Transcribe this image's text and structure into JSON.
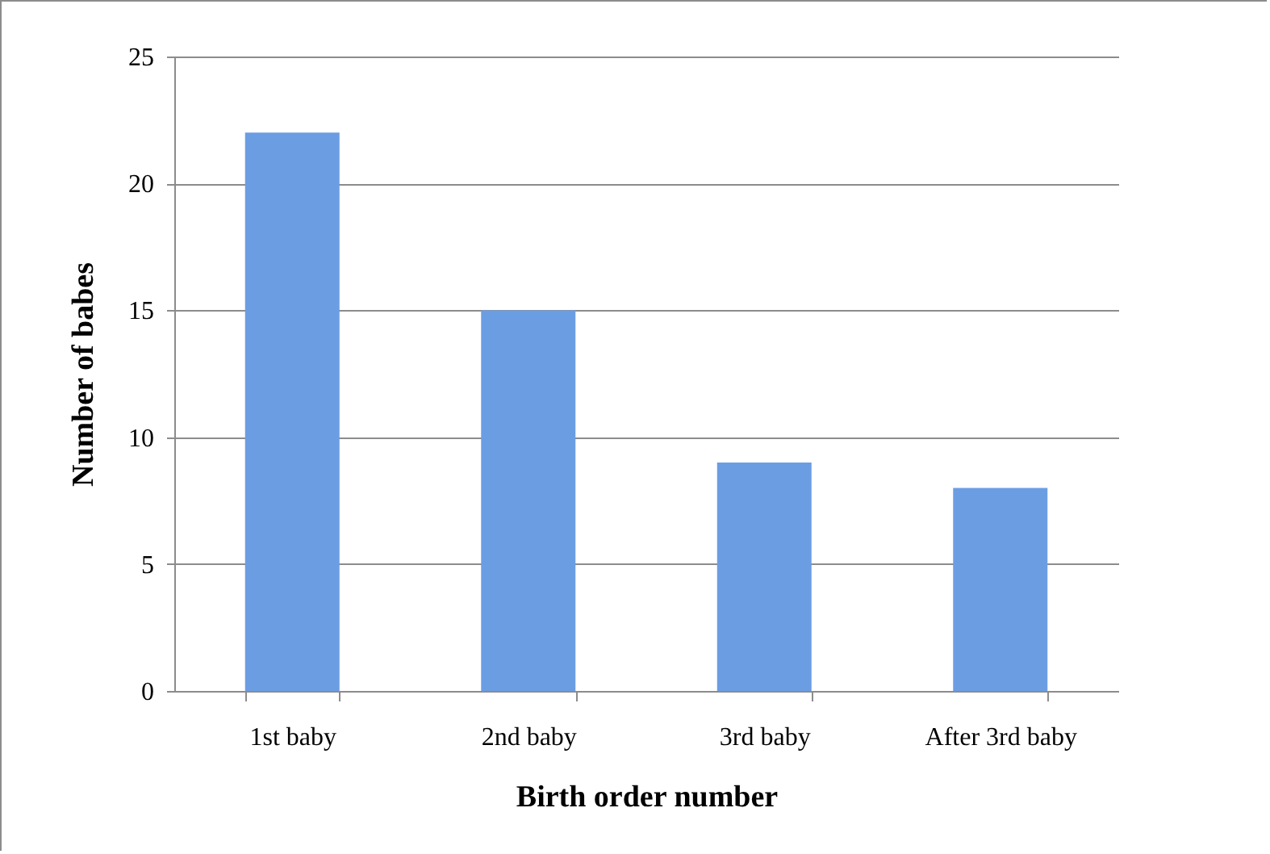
{
  "chart_data": {
    "type": "bar",
    "xlabel": "Birth order number",
    "ylabel": "Number of babes",
    "categories": [
      "1st baby",
      "2nd baby",
      "3rd baby",
      "After 3rd baby"
    ],
    "values": [
      22,
      15,
      9,
      8
    ],
    "color": "#6b9de3",
    "ylim": [
      0,
      25
    ],
    "yticks": [
      0,
      5,
      10,
      15,
      20,
      25
    ],
    "grid": "y"
  }
}
